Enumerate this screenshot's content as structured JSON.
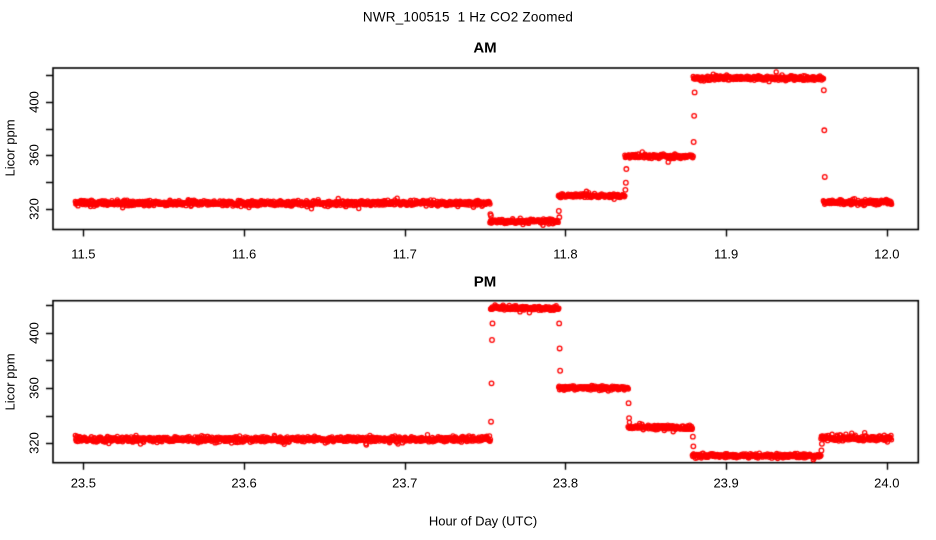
{
  "title": "NWR_100515  1 Hz CO2 Zoomed",
  "xlabel": "Hour of Day (UTC)",
  "colors": {
    "marker": "#FF0000",
    "axis": "#000000",
    "background": "#FFFFFF"
  },
  "chart_data": [
    {
      "type": "scatter",
      "panel": "AM",
      "title": "AM",
      "ylabel": "Licor ppm",
      "marker": "open-circle",
      "sample_rate_hz": 1,
      "xlim": [
        11.4811,
        12.0196
      ],
      "ylim": [
        304.7,
        425.2
      ],
      "xticks": [
        11.5,
        11.6,
        11.7,
        11.8,
        11.9,
        12.0
      ],
      "xtick_labels": [
        "11.5",
        "11.6",
        "11.7",
        "11.8",
        "11.9",
        "12.0"
      ],
      "yticks": [
        320,
        340,
        360,
        380,
        400,
        420
      ],
      "ytick_labels": [
        "320",
        "",
        "360",
        "",
        "400",
        ""
      ],
      "segments": [
        {
          "start": 11.495,
          "end": 11.753,
          "level": 324.4,
          "sd": 1.0
        },
        {
          "start": 11.753,
          "end": 11.7956,
          "level": 310.9,
          "sd": 0.8
        },
        {
          "start": 11.7956,
          "end": 11.837,
          "level": 329.8,
          "sd": 0.8
        },
        {
          "start": 11.837,
          "end": 11.8795,
          "level": 359.3,
          "sd": 0.8
        },
        {
          "start": 11.8795,
          "end": 11.9605,
          "level": 417.6,
          "sd": 0.9
        },
        {
          "start": 11.9605,
          "end": 12.003,
          "level": 324.9,
          "sd": 1.0
        }
      ],
      "transition_points": [
        [
          11.7533,
          316.2
        ],
        [
          11.7536,
          315.0
        ],
        [
          11.7959,
          318.5
        ],
        [
          11.7962,
          313.8
        ],
        [
          11.8373,
          334.3
        ],
        [
          11.8376,
          339.6
        ],
        [
          11.8379,
          349.8
        ],
        [
          11.8798,
          370.0
        ],
        [
          11.8801,
          389.5
        ],
        [
          11.8804,
          407.0
        ],
        [
          11.9608,
          408.6
        ],
        [
          11.9611,
          378.7
        ],
        [
          11.9614,
          343.9
        ]
      ]
    },
    {
      "type": "scatter",
      "panel": "PM",
      "title": "PM",
      "ylabel": "Licor ppm",
      "marker": "open-circle",
      "sample_rate_hz": 1,
      "xlim": [
        23.4811,
        24.0196
      ],
      "ylim": [
        306.0,
        423.0
      ],
      "xticks": [
        23.5,
        23.6,
        23.7,
        23.8,
        23.9,
        24.0
      ],
      "xtick_labels": [
        "23.5",
        "23.6",
        "23.7",
        "23.8",
        "23.9",
        "24.0"
      ],
      "yticks": [
        320,
        340,
        360,
        380,
        400,
        420
      ],
      "ytick_labels": [
        "320",
        "",
        "360",
        "",
        "400",
        ""
      ],
      "segments": [
        {
          "start": 23.495,
          "end": 23.7534,
          "level": 322.9,
          "sd": 1.0
        },
        {
          "start": 23.7534,
          "end": 23.7958,
          "level": 417.6,
          "sd": 0.9
        },
        {
          "start": 23.7958,
          "end": 23.839,
          "level": 360.0,
          "sd": 0.8
        },
        {
          "start": 23.839,
          "end": 23.879,
          "level": 331.5,
          "sd": 0.8
        },
        {
          "start": 23.879,
          "end": 23.959,
          "level": 311.0,
          "sd": 0.8
        },
        {
          "start": 23.959,
          "end": 24.003,
          "level": 323.7,
          "sd": 1.0
        }
      ],
      "transition_points": [
        [
          23.7537,
          335.6
        ],
        [
          23.754,
          363.3
        ],
        [
          23.7543,
          394.6
        ],
        [
          23.7546,
          406.6
        ],
        [
          23.7961,
          406.6
        ],
        [
          23.7964,
          388.5
        ],
        [
          23.7967,
          372.4
        ],
        [
          23.8393,
          349.0
        ],
        [
          23.8396,
          338.2
        ],
        [
          23.8793,
          324.8
        ],
        [
          23.8796,
          317.8
        ],
        [
          23.9593,
          314.8
        ],
        [
          23.9596,
          319.6
        ]
      ]
    }
  ]
}
